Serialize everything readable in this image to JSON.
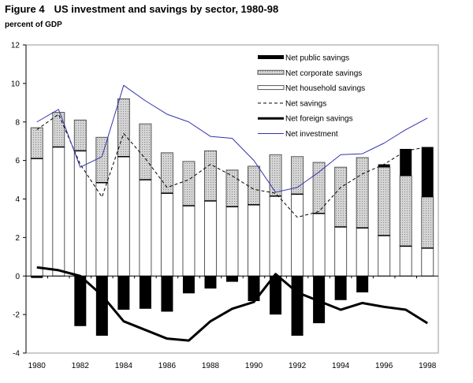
{
  "title": {
    "figure": "Figure 4",
    "text": "US investment and savings by sector, 1980-98"
  },
  "unit_label": "percent of GDP",
  "colors": {
    "public": "#000000",
    "corporate": "#c0c0c0",
    "household": "#ffffff",
    "net_savings": "#000000",
    "foreign": "#000000",
    "investment": "#3333aa"
  },
  "chart_data": {
    "type": "bar",
    "stacked": true,
    "ylim": [
      -4,
      12
    ],
    "yticks": [
      -4,
      -2,
      0,
      2,
      4,
      6,
      8,
      10,
      12
    ],
    "categories": [
      1980,
      1981,
      1982,
      1983,
      1984,
      1985,
      1986,
      1987,
      1988,
      1989,
      1990,
      1991,
      1992,
      1993,
      1994,
      1995,
      1996,
      1997,
      1998
    ],
    "xtick_labels": [
      "1980",
      "1982",
      "1984",
      "1986",
      "1988",
      "1990",
      "1992",
      "1994",
      "1996",
      "1998"
    ],
    "legend_position": "top-right",
    "grid": false,
    "bar_series": [
      {
        "name": "Net public savings",
        "values": [
          -0.1,
          0,
          -2.6,
          -3.1,
          -1.75,
          -1.7,
          -1.85,
          -0.9,
          -0.65,
          -0.3,
          -1.3,
          -2.0,
          -3.1,
          -2.45,
          -1.25,
          -0.85,
          0.15,
          1.4,
          2.6
        ]
      },
      {
        "name": "Net corporate savings",
        "values": [
          1.6,
          1.8,
          1.6,
          2.35,
          3.0,
          2.9,
          2.1,
          2.3,
          2.6,
          1.9,
          2.0,
          2.15,
          1.95,
          2.65,
          3.1,
          3.65,
          3.55,
          3.65,
          2.65
        ]
      },
      {
        "name": "Net household savings",
        "values": [
          6.1,
          6.7,
          6.5,
          4.85,
          6.2,
          5.0,
          4.3,
          3.65,
          3.9,
          3.6,
          3.7,
          4.15,
          4.25,
          3.25,
          2.55,
          2.5,
          2.1,
          1.55,
          1.45
        ]
      }
    ],
    "line_series": [
      {
        "name": "Net savings",
        "style": "dashed",
        "values": [
          7.6,
          8.4,
          5.8,
          4.1,
          7.4,
          6.1,
          4.6,
          5.0,
          5.8,
          5.2,
          4.5,
          4.3,
          3.05,
          3.35,
          4.6,
          5.3,
          5.8,
          6.5,
          6.7
        ]
      },
      {
        "name": "Net foreign savings",
        "style": "thick",
        "values": [
          0.45,
          0.3,
          0,
          -1.0,
          -2.35,
          -2.8,
          -3.25,
          -3.35,
          -2.35,
          -1.7,
          -1.35,
          0.1,
          -0.85,
          -1.3,
          -1.75,
          -1.4,
          -1.6,
          -1.75,
          -2.45
        ]
      },
      {
        "name": "Net investment",
        "style": "thin-blue",
        "values": [
          8.0,
          8.65,
          5.65,
          6.2,
          9.9,
          9.1,
          8.4,
          8.0,
          7.25,
          7.15,
          6.0,
          4.35,
          4.6,
          5.4,
          6.3,
          6.35,
          6.9,
          7.6,
          8.2
        ]
      }
    ]
  }
}
